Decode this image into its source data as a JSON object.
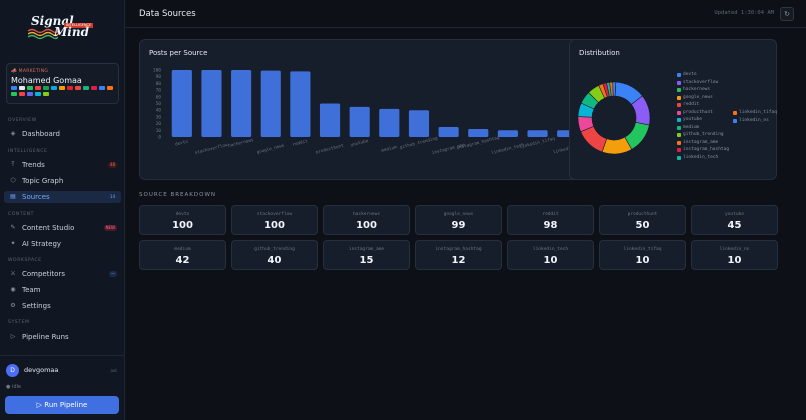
{
  "app": {
    "logo_line1": "Signal",
    "logo_line2": "Mind",
    "logo_tag": "INTELLIGENCE"
  },
  "profile": {
    "role": "MARKETING",
    "name": "Mohamed Gomaa",
    "flag_colors": [
      "#3b82f6",
      "#e5e7eb",
      "#22c55e",
      "#ef4444",
      "#16a34a",
      "#0ea5e9",
      "#f59e0b",
      "#dc2626",
      "#ef4444",
      "#10b981",
      "#e11d48",
      "#3b82f6",
      "#f97316",
      "#22c55e",
      "#ef4444",
      "#6366f1",
      "#06b6d4",
      "#84cc16"
    ]
  },
  "nav": {
    "sections": [
      {
        "label": "OVERVIEW"
      },
      {
        "label": "INTELLIGENCE"
      },
      {
        "label": "CONTENT"
      },
      {
        "label": "WORKSPACE"
      },
      {
        "label": "SYSTEM"
      }
    ],
    "items": [
      {
        "label": "Dashboard",
        "icon": "◈"
      },
      {
        "label": "Trends",
        "icon": "⤒",
        "badge": "48"
      },
      {
        "label": "Topic Graph",
        "icon": "⬡"
      },
      {
        "label": "Sources",
        "icon": "▤",
        "badge": "14"
      },
      {
        "label": "Content Studio",
        "icon": "✎",
        "badge": "NEW"
      },
      {
        "label": "AI Strategy",
        "icon": "✦"
      },
      {
        "label": "Competitors",
        "icon": "⚔",
        "badge": "—"
      },
      {
        "label": "Team",
        "icon": "◉"
      },
      {
        "label": "Settings",
        "icon": "⚙"
      },
      {
        "label": "Pipeline Runs",
        "icon": "▷"
      }
    ]
  },
  "user": {
    "initial": "D",
    "name": "devgomaa",
    "logout": "out",
    "status": "● idle"
  },
  "run_button": "▷ Run Pipeline",
  "header": {
    "title": "Data Sources",
    "updated": "Updated 1:30:04 AM",
    "refresh_icon": "↻"
  },
  "bar_card": {
    "title": "Posts per Source"
  },
  "dist_card": {
    "title": "Distribution"
  },
  "breakdown": {
    "title": "SOURCE BREAKDOWN"
  },
  "chart_data": [
    {
      "type": "bar",
      "title": "Posts per Source",
      "categories": [
        "devto",
        "stackoverflow",
        "hackernews",
        "google_news",
        "reddit",
        "producthunt",
        "youtube",
        "medium",
        "github_trending",
        "instagram_ame",
        "instagram_hashtag",
        "linkedin_tech",
        "linkedin_tifaq",
        "linkedin_ns"
      ],
      "values": [
        100,
        100,
        100,
        99,
        98,
        50,
        45,
        42,
        40,
        15,
        12,
        10,
        10,
        10
      ],
      "ylim": [
        0,
        100
      ],
      "yticks": [
        0,
        10,
        20,
        30,
        40,
        50,
        60,
        70,
        80,
        90,
        100
      ],
      "grid": false
    },
    {
      "type": "pie",
      "title": "Distribution",
      "donut": true,
      "labels": [
        "devto",
        "stackoverflow",
        "hackernews",
        "google_news",
        "reddit",
        "producthunt",
        "youtube",
        "medium",
        "github_trending",
        "instagram_ame",
        "instagram_hashtag",
        "linkedin_tech",
        "linkedin_tifaq",
        "linkedin_ns"
      ],
      "values": [
        100,
        100,
        100,
        99,
        98,
        50,
        45,
        42,
        40,
        15,
        12,
        10,
        10,
        10
      ],
      "colors": [
        "#3b82f6",
        "#8b5cf6",
        "#22c55e",
        "#f59e0b",
        "#ef4444",
        "#ec4899",
        "#06b6d4",
        "#10b981",
        "#84cc16",
        "#f97316",
        "#e11d48",
        "#14b8a6",
        "#f97316",
        "#3b82f6"
      ],
      "legend_position": "right"
    }
  ],
  "stats": [
    {
      "name": "devto",
      "value": "100"
    },
    {
      "name": "stackoverflow",
      "value": "100"
    },
    {
      "name": "hackernews",
      "value": "100"
    },
    {
      "name": "google_news",
      "value": "99"
    },
    {
      "name": "reddit",
      "value": "98"
    },
    {
      "name": "producthunt",
      "value": "50"
    },
    {
      "name": "youtube",
      "value": "45"
    },
    {
      "name": "medium",
      "value": "42"
    },
    {
      "name": "github_trending",
      "value": "40"
    },
    {
      "name": "instagram_ame",
      "value": "15"
    },
    {
      "name": "instagram_hashtag",
      "value": "12"
    },
    {
      "name": "linkedin_tech",
      "value": "10"
    },
    {
      "name": "linkedin_tifaq",
      "value": "10"
    },
    {
      "name": "linkedin_ns",
      "value": "10"
    }
  ]
}
